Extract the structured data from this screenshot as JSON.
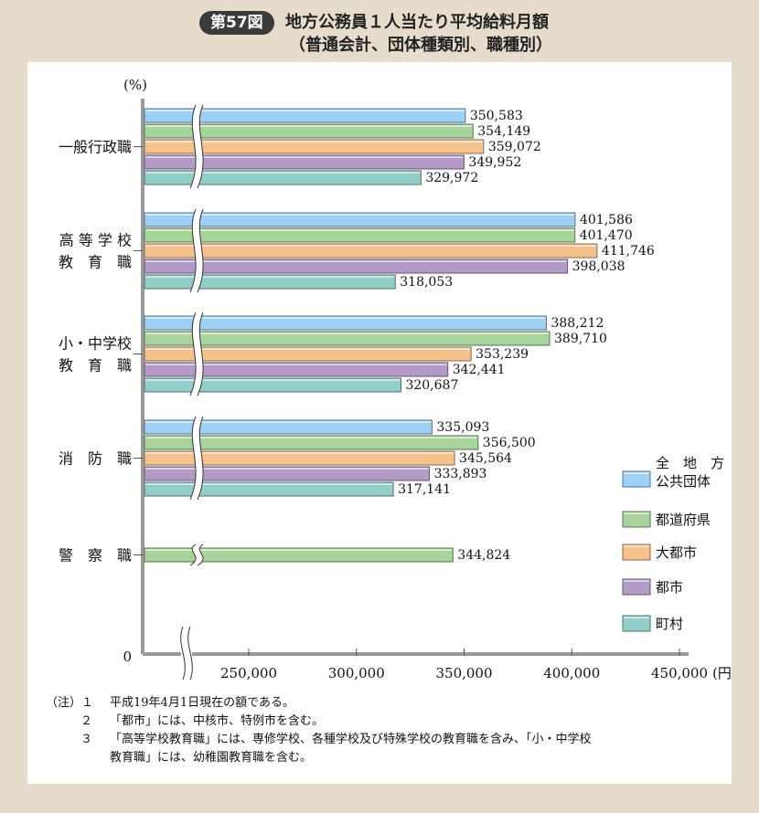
{
  "header": {
    "badge": "第57図",
    "title_line1": "地方公務員１人当たり平均給料月額",
    "title_line2": "（普通会計、団体種類別、職種別）"
  },
  "chart_data": {
    "type": "bar",
    "orientation": "horizontal",
    "unit_y": "(%)",
    "unit_x": "(円)",
    "axis_zero_label": "0",
    "axis_break": true,
    "xlim": [
      200000,
      450000
    ],
    "x_ticks": [
      {
        "value": 250000,
        "label": "250,000"
      },
      {
        "value": 300000,
        "label": "300,000"
      },
      {
        "value": 350000,
        "label": "350,000"
      },
      {
        "value": 400000,
        "label": "400,000"
      },
      {
        "value": 450000,
        "label": "450,000"
      }
    ],
    "series": [
      {
        "key": "all",
        "name": "全地方公共団体",
        "legend_lines": [
          "全　地　方",
          "公共団体"
        ],
        "color": "#9ed0f5"
      },
      {
        "key": "pref",
        "name": "都道府県",
        "legend_lines": [
          "都道府県"
        ],
        "color": "#a6d49a"
      },
      {
        "key": "big",
        "name": "大都市",
        "legend_lines": [
          "大都市"
        ],
        "color": "#f4c28a"
      },
      {
        "key": "city",
        "name": "都市",
        "legend_lines": [
          "都市"
        ],
        "color": "#b49ac8"
      },
      {
        "key": "town",
        "name": "町村",
        "legend_lines": [
          "町村"
        ],
        "color": "#93cdc8"
      }
    ],
    "categories": [
      {
        "label_lines": [
          "一般行政職"
        ],
        "values": [
          {
            "series": "all",
            "value": 350583,
            "label": "350,583"
          },
          {
            "series": "pref",
            "value": 354149,
            "label": "354,149"
          },
          {
            "series": "big",
            "value": 359072,
            "label": "359,072"
          },
          {
            "series": "city",
            "value": 349952,
            "label": "349,952"
          },
          {
            "series": "town",
            "value": 329972,
            "label": "329,972"
          }
        ]
      },
      {
        "label_lines": [
          "高 等 学 校",
          "教　育　職"
        ],
        "values": [
          {
            "series": "all",
            "value": 401586,
            "label": "401,586"
          },
          {
            "series": "pref",
            "value": 401470,
            "label": "401,470"
          },
          {
            "series": "big",
            "value": 411746,
            "label": "411,746"
          },
          {
            "series": "city",
            "value": 398038,
            "label": "398,038"
          },
          {
            "series": "town",
            "value": 318053,
            "label": "318,053"
          }
        ]
      },
      {
        "label_lines": [
          "小・中学校",
          "教　育　職"
        ],
        "values": [
          {
            "series": "all",
            "value": 388212,
            "label": "388,212"
          },
          {
            "series": "pref",
            "value": 389710,
            "label": "389,710"
          },
          {
            "series": "big",
            "value": 353239,
            "label": "353,239"
          },
          {
            "series": "city",
            "value": 342441,
            "label": "342,441"
          },
          {
            "series": "town",
            "value": 320687,
            "label": "320,687"
          }
        ]
      },
      {
        "label_lines": [
          "消　防　職"
        ],
        "values": [
          {
            "series": "all",
            "value": 335093,
            "label": "335,093"
          },
          {
            "series": "pref",
            "value": 356500,
            "label": "356,500"
          },
          {
            "series": "big",
            "value": 345564,
            "label": "345,564"
          },
          {
            "series": "city",
            "value": 333893,
            "label": "333,893"
          },
          {
            "series": "town",
            "value": 317141,
            "label": "317,141"
          }
        ]
      },
      {
        "label_lines": [
          "警　察　職"
        ],
        "values": [
          {
            "series": "pref",
            "value": 344824,
            "label": "344,824"
          }
        ]
      }
    ]
  },
  "notes": [
    {
      "prefix": "（注）１",
      "text": "平成19年4月1日現在の額である。"
    },
    {
      "prefix": "２",
      "text": "「都市」には、中核市、特例市を含む。"
    },
    {
      "prefix": "３",
      "text": "「高等学校教育職」には、専修学校、各種学校及び特殊学校の教育職を含み、「小・中学校"
    },
    {
      "prefix": "",
      "text": "教育職」には、幼稚園教育職を含む。"
    }
  ]
}
